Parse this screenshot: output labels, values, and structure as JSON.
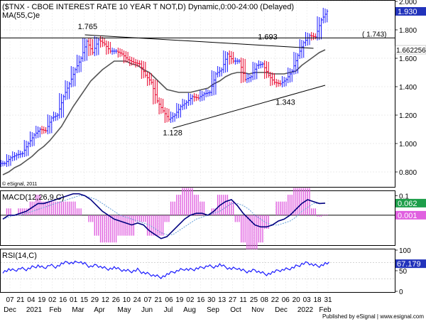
{
  "header": {
    "title": "($TNX - CBOE INTEREST RATE 10 YEAR T NOT,D) Dynamic,0:00-24:00 (Delayed)",
    "ma_label": "MA(55,C)e"
  },
  "footer": {
    "watermark": "© eSignal, 2011",
    "publisher": "Published by eSignal | www.esignal.com"
  },
  "colors": {
    "up_bar": "#1a1aff",
    "down_bar": "#e8002a",
    "ma_line": "#555555",
    "macd_line": "#000080",
    "signal_line": "#66a0d8",
    "hist": "#e060e0",
    "rsi_line": "#1a1aff",
    "price_badge": "#2233bb",
    "macd_badge": "#1e9e4a"
  },
  "chart_data": [
    {
      "type": "line",
      "panel": "price",
      "title": "($TNX - CBOE INTEREST RATE 10 YEAR T NOT,D) Dynamic,0:00-24:00 (Delayed)",
      "ylim": [
        0.7,
        2.0
      ],
      "y_ticks": [
        "2.000",
        "1.800",
        "1.600",
        "1.400",
        "1.200",
        "1.000",
        "0.800"
      ],
      "x_tick_days": [
        "07",
        "21",
        "04",
        "19",
        "02",
        "16",
        "01",
        "15",
        "29",
        "12",
        "26",
        "10",
        "24",
        "07",
        "21",
        "06",
        "19",
        "02",
        "16",
        "30",
        "13",
        "27",
        "11",
        "25",
        "08",
        "22",
        "06",
        "20",
        "03",
        "18",
        "31"
      ],
      "x_tick_months": [
        "Dec",
        "2021",
        "Feb",
        "Mar",
        "Apr",
        "May",
        "Jun",
        "Jul",
        "Aug",
        "Sep",
        "Oct",
        "Nov",
        "Dec",
        "2022",
        "Feb"
      ],
      "key_points": [
        {
          "label": "1.765",
          "value": 1.765
        },
        {
          "label": "1.693",
          "value": 1.693
        },
        {
          "label": "1.128",
          "value": 1.128
        },
        {
          "label": "1.343",
          "value": 1.343
        }
      ],
      "level_label": "( 1.743)",
      "level_value": 1.743,
      "last_value_label": "1.930",
      "ma_value_label": "1.662256",
      "series": [
        {
          "name": "$TNX",
          "values": [
            0.86,
            0.9,
            0.92,
            0.93,
            1.0,
            1.06,
            1.1,
            1.09,
            1.18,
            1.2,
            1.33,
            1.42,
            1.52,
            1.6,
            1.72,
            1.64,
            1.73,
            1.7,
            1.65,
            1.65,
            1.63,
            1.59,
            1.57,
            1.56,
            1.48,
            1.43,
            1.3,
            1.23,
            1.17,
            1.2,
            1.26,
            1.29,
            1.33,
            1.32,
            1.35,
            1.36,
            1.49,
            1.52,
            1.63,
            1.58,
            1.58,
            1.45,
            1.47,
            1.55,
            1.56,
            1.48,
            1.43,
            1.42,
            1.45,
            1.51,
            1.62,
            1.71,
            1.76,
            1.75,
            1.87,
            1.93
          ]
        },
        {
          "name": "MA(55,C)e",
          "values": [
            0.78,
            0.8,
            0.83,
            0.85,
            0.88,
            0.91,
            0.95,
            0.98,
            1.02,
            1.07,
            1.12,
            1.19,
            1.26,
            1.32,
            1.38,
            1.44,
            1.48,
            1.52,
            1.55,
            1.58,
            1.58,
            1.58,
            1.56,
            1.55,
            1.52,
            1.5,
            1.46,
            1.42,
            1.38,
            1.37,
            1.36,
            1.36,
            1.36,
            1.37,
            1.38,
            1.39,
            1.42,
            1.44,
            1.47,
            1.49,
            1.5,
            1.5,
            1.49,
            1.5,
            1.5,
            1.5,
            1.49,
            1.49,
            1.49,
            1.5,
            1.51,
            1.55,
            1.58,
            1.61,
            1.64,
            1.66
          ]
        }
      ]
    },
    {
      "type": "line",
      "panel": "macd",
      "title": "MACD(12,26,9,C)",
      "ylim": [
        -0.15,
        0.12
      ],
      "y_ticks": [
        "0.1",
        "-0"
      ],
      "macd_value_label": "0.062",
      "hist_value_label": "0.001",
      "series": [
        {
          "name": "MACD",
          "values": [
            -0.02,
            0.0,
            0.0,
            0.01,
            0.02,
            0.04,
            0.06,
            0.06,
            0.07,
            0.08,
            0.09,
            0.1,
            0.11,
            0.11,
            0.1,
            0.08,
            0.05,
            0.02,
            0.0,
            -0.02,
            -0.03,
            -0.04,
            -0.05,
            -0.04,
            -0.05,
            -0.08,
            -0.1,
            -0.12,
            -0.11,
            -0.08,
            -0.05,
            -0.02,
            0.0,
            0.01,
            0.01,
            0.0,
            0.02,
            0.05,
            0.07,
            0.08,
            0.05,
            0.01,
            -0.02,
            -0.05,
            -0.06,
            -0.06,
            -0.05,
            -0.03,
            -0.02,
            0.0,
            0.03,
            0.06,
            0.08,
            0.07,
            0.06,
            0.062
          ]
        },
        {
          "name": "Signal",
          "values": [
            -0.02,
            -0.01,
            0.0,
            0.0,
            0.01,
            0.02,
            0.03,
            0.04,
            0.05,
            0.06,
            0.07,
            0.08,
            0.09,
            0.1,
            0.1,
            0.09,
            0.08,
            0.06,
            0.04,
            0.02,
            0.0,
            -0.01,
            -0.02,
            -0.03,
            -0.04,
            -0.05,
            -0.07,
            -0.09,
            -0.1,
            -0.1,
            -0.08,
            -0.06,
            -0.04,
            -0.02,
            -0.01,
            0.0,
            0.01,
            0.02,
            0.04,
            0.06,
            0.06,
            0.05,
            0.03,
            0.0,
            -0.02,
            -0.04,
            -0.05,
            -0.05,
            -0.04,
            -0.03,
            -0.01,
            0.02,
            0.04,
            0.06,
            0.062,
            0.061
          ]
        }
      ]
    },
    {
      "type": "line",
      "panel": "rsi",
      "title": "RSI(14,C)",
      "ylim": [
        0,
        100
      ],
      "y_ticks": [
        "100",
        "50",
        "0"
      ],
      "rsi_value_label": "67.179",
      "series": [
        {
          "name": "RSI",
          "values": [
            48,
            52,
            50,
            55,
            53,
            58,
            62,
            57,
            64,
            60,
            66,
            70,
            68,
            72,
            66,
            60,
            64,
            58,
            55,
            57,
            52,
            50,
            48,
            52,
            45,
            42,
            38,
            35,
            40,
            46,
            50,
            54,
            52,
            55,
            58,
            62,
            60,
            64,
            58,
            54,
            56,
            50,
            48,
            52,
            46,
            42,
            45,
            50,
            52,
            55,
            60,
            66,
            70,
            64,
            62,
            67
          ]
        }
      ]
    }
  ]
}
